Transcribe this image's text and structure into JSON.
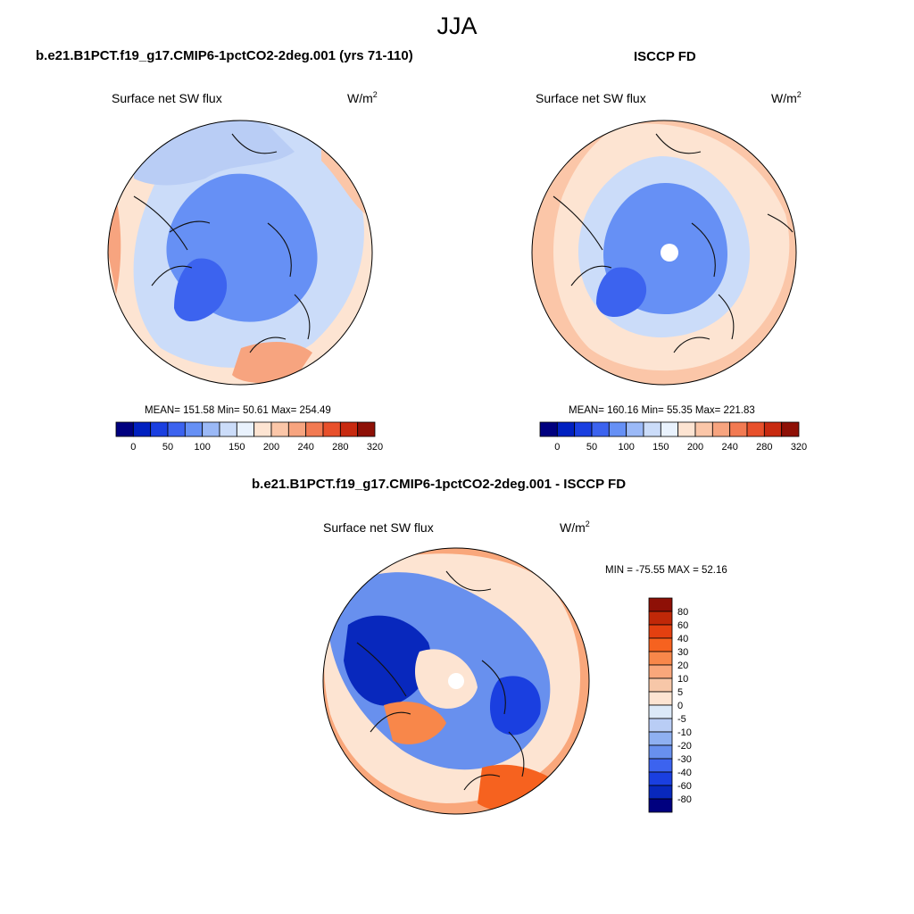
{
  "figure": {
    "season": "JJA",
    "panel_left_title": "b.e21.B1PCT.f19_g17.CMIP6-1pctCO2-2deg.001 (yrs 71-110)",
    "panel_right_title": "ISCCP FD",
    "panel_diff_title": "b.e21.B1PCT.f19_g17.CMIP6-1pctCO2-2deg.001 - ISCCP FD"
  },
  "chart_data": [
    {
      "type": "heatmap",
      "projection": "north-polar-stereographic",
      "title": "b.e21.B1PCT.f19_g17.CMIP6-1pctCO2-2deg.001 (yrs 71-110)",
      "variable": "Surface net SW flux",
      "units_base": "W/m",
      "units_exp": "2",
      "stats_text": "MEAN= 151.58  Min=  50.61  Max= 254.49",
      "mean": 151.58,
      "min": 50.61,
      "max": 254.49,
      "colorbar_levels": [
        "0",
        "50",
        "100",
        "150",
        "200",
        "240",
        "280",
        "320"
      ],
      "colorbar_colors": [
        "#00007f",
        "#0020c0",
        "#1a3fe0",
        "#3c63ef",
        "#6690f5",
        "#9bb9f7",
        "#cbdcf9",
        "#e9f2fd",
        "#fde4d2",
        "#fbc6a8",
        "#f7a47f",
        "#f27a52",
        "#e8502b",
        "#c82a10",
        "#8e1006"
      ]
    },
    {
      "type": "heatmap",
      "projection": "north-polar-stereographic",
      "title": "ISCCP FD",
      "variable": "Surface net SW flux",
      "units_base": "W/m",
      "units_exp": "2",
      "stats_text": "MEAN= 160.16  Min=  55.35  Max= 221.83",
      "mean": 160.16,
      "min": 55.35,
      "max": 221.83,
      "colorbar_levels": [
        "0",
        "50",
        "100",
        "150",
        "200",
        "240",
        "280",
        "320"
      ],
      "colorbar_colors": [
        "#00007f",
        "#0020c0",
        "#1a3fe0",
        "#3c63ef",
        "#6690f5",
        "#9bb9f7",
        "#cbdcf9",
        "#e9f2fd",
        "#fde4d2",
        "#fbc6a8",
        "#f7a47f",
        "#f27a52",
        "#e8502b",
        "#c82a10",
        "#8e1006"
      ]
    },
    {
      "type": "heatmap",
      "projection": "north-polar-stereographic",
      "title": "b.e21.B1PCT.f19_g17.CMIP6-1pctCO2-2deg.001 - ISCCP FD",
      "variable": "Surface net SW flux",
      "units_base": "W/m",
      "units_exp": "2",
      "stats_text": "MIN = -75.55 MAX =  52.16",
      "min": -75.55,
      "max": 52.16,
      "colorbar_levels": [
        "80",
        "60",
        "40",
        "30",
        "20",
        "10",
        "5",
        "0",
        "-5",
        "-10",
        "-20",
        "-30",
        "-40",
        "-60",
        "-80"
      ],
      "colorbar_colors": [
        "#8e1006",
        "#c02808",
        "#e34010",
        "#f6621f",
        "#f8874a",
        "#f9a77b",
        "#f7c7a8",
        "#fde4d2",
        "#dce9f8",
        "#b9cdf5",
        "#8fb0f1",
        "#6890ee",
        "#3c63ef",
        "#1a3fe0",
        "#0828bd",
        "#00007f"
      ]
    }
  ]
}
